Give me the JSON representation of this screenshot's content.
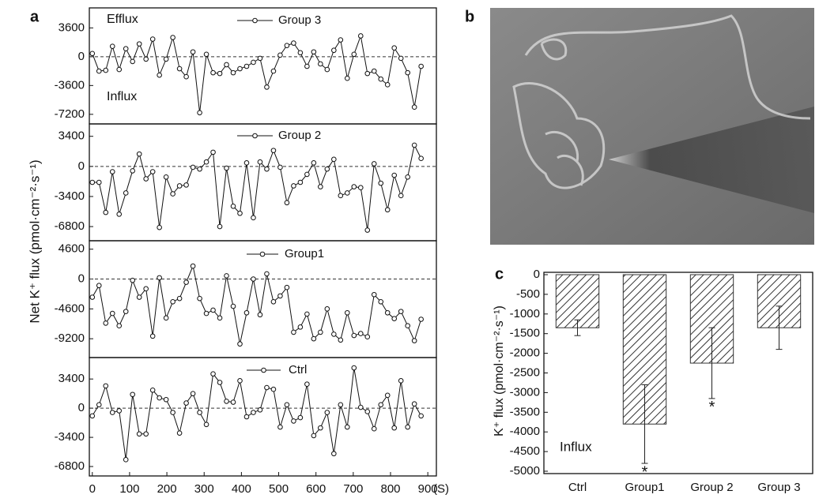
{
  "panel_labels": [
    "a",
    "b",
    "c"
  ],
  "panel_a": {
    "y_label": "Net K⁺ flux (pmol·cm⁻²·s⁻¹)"
  },
  "chart_data": [
    {
      "type": "line",
      "annotations": [
        "Efflux",
        "Influx"
      ],
      "xlim": [
        -8,
        923
      ],
      "ylim": [
        -8400,
        6100
      ],
      "yticks": [
        3600,
        0,
        -3600,
        -7200
      ],
      "zero_line": true,
      "x": [
        0,
        18,
        36,
        54,
        72,
        90,
        108,
        126,
        144,
        162,
        180,
        198,
        216,
        234,
        252,
        270,
        288,
        306,
        324,
        342,
        360,
        378,
        396,
        414,
        432,
        450,
        468,
        486,
        504,
        522,
        540,
        558,
        576,
        594,
        612,
        630,
        648,
        666,
        684,
        702,
        720,
        738,
        756,
        774,
        792,
        810,
        828,
        846,
        864,
        882
      ],
      "series": [
        {
          "name": "Group 3",
          "color": "#111111",
          "values": [
            400,
            -1800,
            -1700,
            1300,
            -1600,
            1000,
            -600,
            1600,
            -300,
            2200,
            -2300,
            -300,
            2400,
            -1500,
            -2500,
            600,
            -7000,
            300,
            -2000,
            -2100,
            -1000,
            -2000,
            -1500,
            -1200,
            -700,
            -200,
            -3800,
            -1800,
            200,
            1400,
            1700,
            500,
            -1200,
            600,
            -900,
            -1600,
            800,
            2100,
            -2700,
            300,
            2600,
            -2100,
            -1800,
            -2800,
            -3500,
            1100,
            -200,
            -2000,
            -6300,
            -1200
          ]
        }
      ]
    },
    {
      "type": "line",
      "xlim": [
        -8,
        923
      ],
      "ylim": [
        -8400,
        4800
      ],
      "yticks": [
        3400,
        0,
        -3400,
        -6800
      ],
      "zero_line": true,
      "x": [
        0,
        18,
        36,
        54,
        72,
        90,
        108,
        126,
        144,
        162,
        180,
        198,
        216,
        234,
        252,
        270,
        288,
        306,
        324,
        342,
        360,
        378,
        396,
        414,
        432,
        450,
        468,
        486,
        504,
        522,
        540,
        558,
        576,
        594,
        612,
        630,
        648,
        666,
        684,
        702,
        720,
        738,
        756,
        774,
        792,
        810,
        828,
        846,
        864,
        882
      ],
      "series": [
        {
          "name": "Group 2",
          "color": "#111111",
          "values": [
            -1800,
            -1800,
            -5200,
            -600,
            -5400,
            -3000,
            -500,
            1400,
            -1400,
            -600,
            -6900,
            -1200,
            -3100,
            -2200,
            -2100,
            -100,
            -300,
            500,
            1600,
            -6800,
            -200,
            -4500,
            -5300,
            400,
            -5800,
            500,
            -300,
            1800,
            -100,
            -4100,
            -2200,
            -1800,
            -900,
            400,
            -2300,
            -300,
            800,
            -3300,
            -3000,
            -2300,
            -2400,
            -7200,
            300,
            -1900,
            -4900,
            -1000,
            -3300,
            -1200,
            2400,
            900
          ]
        }
      ]
    },
    {
      "type": "line",
      "xlim": [
        -8,
        923
      ],
      "ylim": [
        -12100,
        5900
      ],
      "yticks": [
        4600,
        0,
        -4600,
        -9200
      ],
      "zero_line": true,
      "x": [
        0,
        18,
        36,
        54,
        72,
        90,
        108,
        126,
        144,
        162,
        180,
        198,
        216,
        234,
        252,
        270,
        288,
        306,
        324,
        342,
        360,
        378,
        396,
        414,
        432,
        450,
        468,
        486,
        504,
        522,
        540,
        558,
        576,
        594,
        612,
        630,
        648,
        666,
        684,
        702,
        720,
        738,
        756,
        774,
        792,
        810,
        828,
        846,
        864,
        882
      ],
      "series": [
        {
          "name": "Group1",
          "color": "#111111",
          "values": [
            -2800,
            -1000,
            -6800,
            -5300,
            -7200,
            -5000,
            -200,
            -2800,
            -1500,
            -8800,
            200,
            -6000,
            -3500,
            -3000,
            -500,
            2000,
            -3000,
            -5300,
            -4800,
            -6000,
            500,
            -4200,
            -10000,
            -5200,
            0,
            -5500,
            800,
            -3500,
            -2600,
            -1300,
            -8200,
            -7400,
            -5400,
            -9200,
            -8200,
            -4600,
            -8500,
            -9400,
            -5200,
            -8700,
            -8400,
            -8900,
            -2400,
            -3500,
            -5200,
            -6100,
            -5000,
            -7200,
            -9500,
            -6200
          ]
        }
      ]
    },
    {
      "type": "line",
      "x_label": "(S)",
      "xlim": [
        -8,
        923
      ],
      "xticks": [
        0,
        100,
        200,
        300,
        400,
        500,
        600,
        700,
        800,
        900
      ],
      "ylim": [
        -7900,
        5900
      ],
      "yticks": [
        3400,
        0,
        -3400,
        -6800
      ],
      "zero_line": true,
      "x": [
        0,
        18,
        36,
        54,
        72,
        90,
        108,
        126,
        144,
        162,
        180,
        198,
        216,
        234,
        252,
        270,
        288,
        306,
        324,
        342,
        360,
        378,
        396,
        414,
        432,
        450,
        468,
        486,
        504,
        522,
        540,
        558,
        576,
        594,
        612,
        630,
        648,
        666,
        684,
        702,
        720,
        738,
        756,
        774,
        792,
        810,
        828,
        846,
        864,
        882
      ],
      "series": [
        {
          "name": "Ctrl",
          "color": "#111111",
          "values": [
            -900,
            400,
            2600,
            -500,
            -300,
            -6000,
            1600,
            -3000,
            -3000,
            2100,
            1200,
            1000,
            -500,
            -2900,
            600,
            1700,
            -500,
            -1900,
            4000,
            3000,
            800,
            700,
            3200,
            -1000,
            -500,
            -200,
            2400,
            2200,
            -2200,
            400,
            -1500,
            -1100,
            2800,
            -3200,
            -2300,
            -500,
            -5300,
            400,
            -2200,
            4700,
            100,
            -400,
            -2400,
            400,
            1500,
            -2300,
            3200,
            -2200,
            500,
            -900
          ]
        }
      ]
    },
    {
      "type": "bar",
      "y_label": "K⁺ flux (pmol·cm⁻²·s⁻¹)",
      "annotation": "Influx",
      "categories": [
        "Ctrl",
        "Group1",
        "Group 2",
        "Group 3"
      ],
      "values": [
        -1350,
        -3800,
        -2250,
        -1350
      ],
      "errors": [
        200,
        1000,
        900,
        550
      ],
      "significance": [
        null,
        "*",
        "*",
        null
      ],
      "ylim": [
        -5060,
        60
      ],
      "yticks": [
        0,
        -500,
        -1000,
        -1500,
        -2000,
        -2500,
        -3000,
        -3500,
        -4000,
        -4500,
        -5000
      ],
      "color": "#333333"
    }
  ]
}
